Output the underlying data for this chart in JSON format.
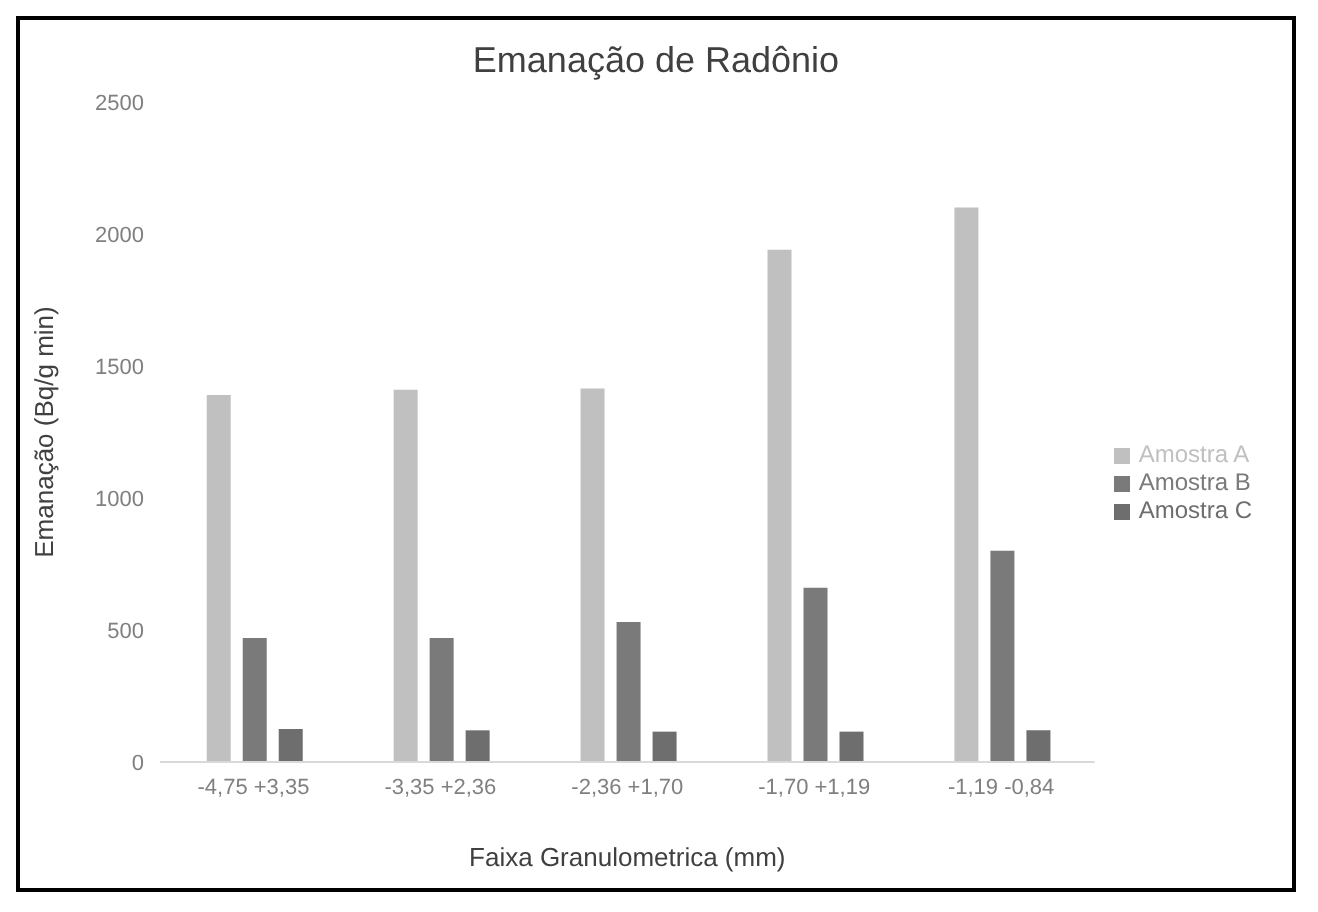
{
  "chart_data": {
    "type": "bar",
    "title": "Emanação de Radônio",
    "xlabel": "Faixa Granulometrica (mm)",
    "ylabel": "Emanação (Bq/g min)",
    "categories": [
      "-4,75 +3,35",
      "-3,35 +2,36",
      "-2,36 +1,70",
      "-1,70 +1,19",
      "-1,19 -0,84"
    ],
    "series": [
      {
        "name": "Amostra A",
        "color": "#c0c0c0",
        "values": [
          1390,
          1410,
          1415,
          1940,
          2100
        ]
      },
      {
        "name": "Amostra B",
        "color": "#7a7a7a",
        "values": [
          470,
          470,
          530,
          660,
          800
        ]
      },
      {
        "name": "Amostra C",
        "color": "#6e6e6e",
        "values": [
          125,
          120,
          115,
          115,
          120
        ]
      }
    ],
    "ylim": [
      0,
      2500
    ],
    "yticks": [
      0,
      500,
      1000,
      1500,
      2000,
      2500
    ],
    "grid": false,
    "legend": "right"
  }
}
